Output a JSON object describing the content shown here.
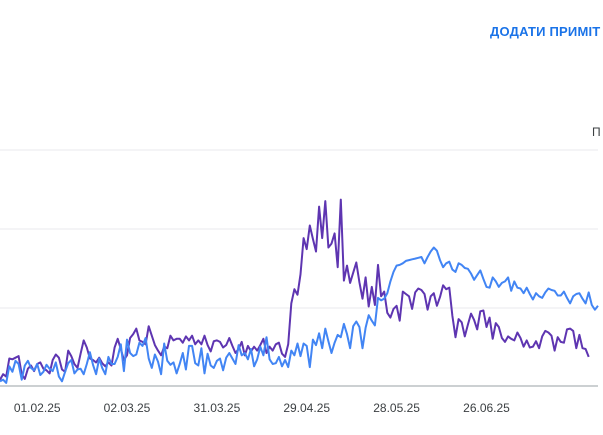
{
  "header": {
    "add_note_label": "ДОДАТИ ПРИМІТ",
    "edge_label": "П"
  },
  "colors": {
    "series_purple": "#5e35b1",
    "series_blue": "#4285f4",
    "grid": "#e8eaed",
    "axis": "#9aa0a6"
  },
  "chart_data": {
    "type": "line",
    "x_tick_labels": [
      "01.02.25",
      "02.03.25",
      "31.03.25",
      "29.04.25",
      "28.05.25",
      "26.06.25"
    ],
    "x_tick_index": [
      12,
      41,
      70,
      99,
      128,
      157
    ],
    "grid": true,
    "series": [
      {
        "color": "#5e35b1",
        "values": [
          0.8,
          1.5,
          1.2,
          3.5,
          3.4,
          3.6,
          3.8,
          1.5,
          0.9,
          2.2,
          2.6,
          1.9,
          2.8,
          3.0,
          2.2,
          2.0,
          1.6,
          3.3,
          4.0,
          3.6,
          2.1,
          1.8,
          4.5,
          3.8,
          2.8,
          2.3,
          4.1,
          5.8,
          4.9,
          3.5,
          3.3,
          3.0,
          3.6,
          2.9,
          2.5,
          3.0,
          2.6,
          4.9,
          6.0,
          4.7,
          3.3,
          3.9,
          6.1,
          6.6,
          7.3,
          5.8,
          5.6,
          5.3,
          7.6,
          6.4,
          5.2,
          4.5,
          3.9,
          5.0,
          4.8,
          6.4,
          5.8,
          6.0,
          6.0,
          5.5,
          6.3,
          5.8,
          6.4,
          5.3,
          5.8,
          5.3,
          6.4,
          5.2,
          4.4,
          5.7,
          5.8,
          5.6,
          4.9,
          5.2,
          6.1,
          5.1,
          4.2,
          4.7,
          5.6,
          3.9,
          5.1,
          4.4,
          5.0,
          4.5,
          5.2,
          6.0,
          4.2,
          5.0,
          4.5,
          5.3,
          5.5,
          4.1,
          3.7,
          5.3,
          10.5,
          12.3,
          11.6,
          14.2,
          18.8,
          17.4,
          20.4,
          18.7,
          17.1,
          22.8,
          18.8,
          23.5,
          17.6,
          18.1,
          19.4,
          15.1,
          23.7,
          13.4,
          15.3,
          13.1,
          14.4,
          15.7,
          13.2,
          11.1,
          13.8,
          10.1,
          12.6,
          10.3,
          15.4,
          11.4,
          12.0,
          9.3,
          8.7,
          9.8,
          10.2,
          8.3,
          12.0,
          11.7,
          11.4,
          9.8,
          11.9,
          12.4,
          12.2,
          11.7,
          9.7,
          11.4,
          11.8,
          10.2,
          11.3,
          12.8,
          12.3,
          12.5,
          8.9,
          6.2,
          8.5,
          8.1,
          6.3,
          7.8,
          9.2,
          8.4,
          7.2,
          9.5,
          9.6,
          7.5,
          8.7,
          6.0,
          8.0,
          7.5,
          6.1,
          5.6,
          6.3,
          6.0,
          5.8,
          6.8,
          6.1,
          5.0,
          5.8,
          4.9,
          5.0,
          5.7,
          4.8,
          6.3,
          7.0,
          6.8,
          6.4,
          4.5,
          6.2,
          5.6,
          5.5,
          7.2,
          7.3,
          7.0,
          4.8,
          6.5,
          4.8,
          4.7,
          3.7
        ]
      },
      {
        "color": "#4285f4",
        "values": [
          0.6,
          0.8,
          0.4,
          2.5,
          1.8,
          3.2,
          2.8,
          0.8,
          2.6,
          3.2,
          2.3,
          2.0,
          2.8,
          1.4,
          1.8,
          2.7,
          2.2,
          1.9,
          3.0,
          1.2,
          0.6,
          1.8,
          2.9,
          3.3,
          1.6,
          2.1,
          2.2,
          1.5,
          2.8,
          4.3,
          2.7,
          1.5,
          3.5,
          2.3,
          1.5,
          3.7,
          2.8,
          2.8,
          3.7,
          5.3,
          1.9,
          5.9,
          4.2,
          3.8,
          4.0,
          5.5,
          5.1,
          6.1,
          3.5,
          2.3,
          4.0,
          3.1,
          1.5,
          5.4,
          3.2,
          2.7,
          3.0,
          1.6,
          2.8,
          4.2,
          2.1,
          5.1,
          5.1,
          2.9,
          2.6,
          4.8,
          1.6,
          4.1,
          2.6,
          2.3,
          3.2,
          3.5,
          2.0,
          3.6,
          4.2,
          3.5,
          2.8,
          5.2,
          3.9,
          4.2,
          3.4,
          4.7,
          2.5,
          3.4,
          5.0,
          3.9,
          6.2,
          3.4,
          2.8,
          2.9,
          3.7,
          2.5,
          3.3,
          2.4,
          4.5,
          3.9,
          5.4,
          3.8,
          5.4,
          5.1,
          2.4,
          5.9,
          5.2,
          6.7,
          4.8,
          7.3,
          5.7,
          4.2,
          5.5,
          6.5,
          6.2,
          7.9,
          6.6,
          4.8,
          7.6,
          8.2,
          7.5,
          4.8,
          7.4,
          9.0,
          8.3,
          7.7,
          11.2,
          10.9,
          11.1,
          11.8,
          13.3,
          14.5,
          15.3,
          15.4,
          15.6,
          15.9,
          16.0,
          16.1,
          16.2,
          16.3,
          16.4,
          15.6,
          16.4,
          17.1,
          17.6,
          17.2,
          16.0,
          15.1,
          15.6,
          15.8,
          14.8,
          14.5,
          15.6,
          15.4,
          15.0,
          14.9,
          14.3,
          13.5,
          14.1,
          14.7,
          13.6,
          12.6,
          12.5,
          13.8,
          13.3,
          12.6,
          13.1,
          13.3,
          13.8,
          12.1,
          13.3,
          12.5,
          12.4,
          11.8,
          12.5,
          11.7,
          11.0,
          11.8,
          11.4,
          11.2,
          11.9,
          12.4,
          12.2,
          12.1,
          11.5,
          11.5,
          12.0,
          11.2,
          10.5,
          11.4,
          11.7,
          11.8,
          11.1,
          10.5,
          11.9,
          10.3,
          9.7,
          10.2
        ]
      }
    ],
    "ylim": [
      0,
      30
    ]
  }
}
